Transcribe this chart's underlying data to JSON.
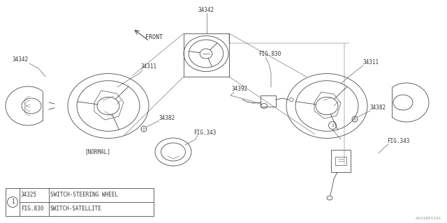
{
  "background_color": "#ffffff",
  "line_color": "#4a4a4a",
  "text_color": "#3a3a3a",
  "label_normal": "[NORMAL]",
  "label_front": "FRONT",
  "watermark": "A341001341",
  "legend_items": [
    {
      "num": "34325",
      "desc": "SWITCH-STEERING WHEEL"
    },
    {
      "num": "FIG.830",
      "desc": "SWITCH-SATELLITE"
    }
  ],
  "fig_label": "1",
  "image_bg": "#f5f5f0"
}
